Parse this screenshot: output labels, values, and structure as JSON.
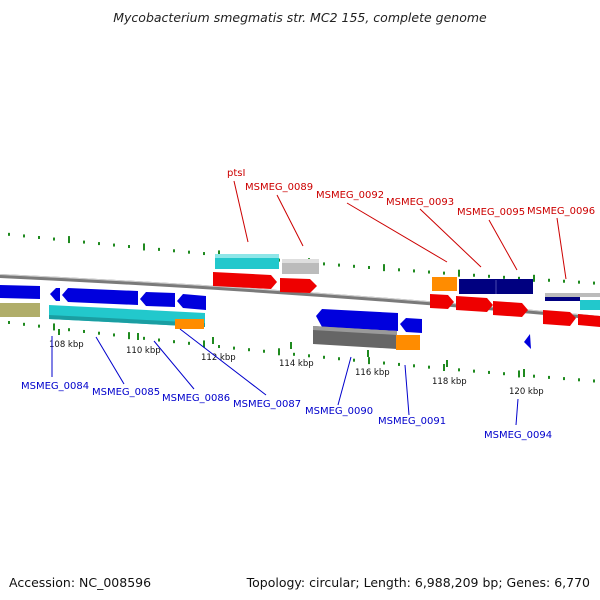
{
  "title": "Mycobacterium smegmatis str. MC2 155, complete genome",
  "footer": {
    "accession": "Accession: NC_008596",
    "summary": "Topology: circular; Length: 6,988,209 bp; Genes: 6,770"
  },
  "ticks": [
    "108 kbp",
    "110 kbp",
    "112 kbp",
    "114 kbp",
    "116 kbp",
    "118 kbp",
    "120 kbp"
  ],
  "labels_top": [
    "ptsI",
    "MSMEG_0089",
    "MSMEG_0092",
    "MSMEG_0093",
    "MSMEG_0095",
    "MSMEG_0096"
  ],
  "labels_bottom": [
    "MSMEG_0084",
    "MSMEG_0085",
    "MSMEG_0086",
    "MSMEG_0087",
    "MSMEG_0090",
    "MSMEG_0091",
    "MSMEG_0094"
  ],
  "colors": {
    "forward_label": "#cc0000",
    "reverse_label": "#0000cc",
    "cds_forward": "#ee0000",
    "cds_reverse": "#0000dd",
    "cyan": "#22c8cc",
    "gray": "#bbbbbb",
    "dark_gray": "#666666",
    "orange": "#ff8c00",
    "navy": "#000080",
    "olive": "#b0ad6a",
    "backbone": "#8c8c8c",
    "dots": "#1f8a1f"
  }
}
